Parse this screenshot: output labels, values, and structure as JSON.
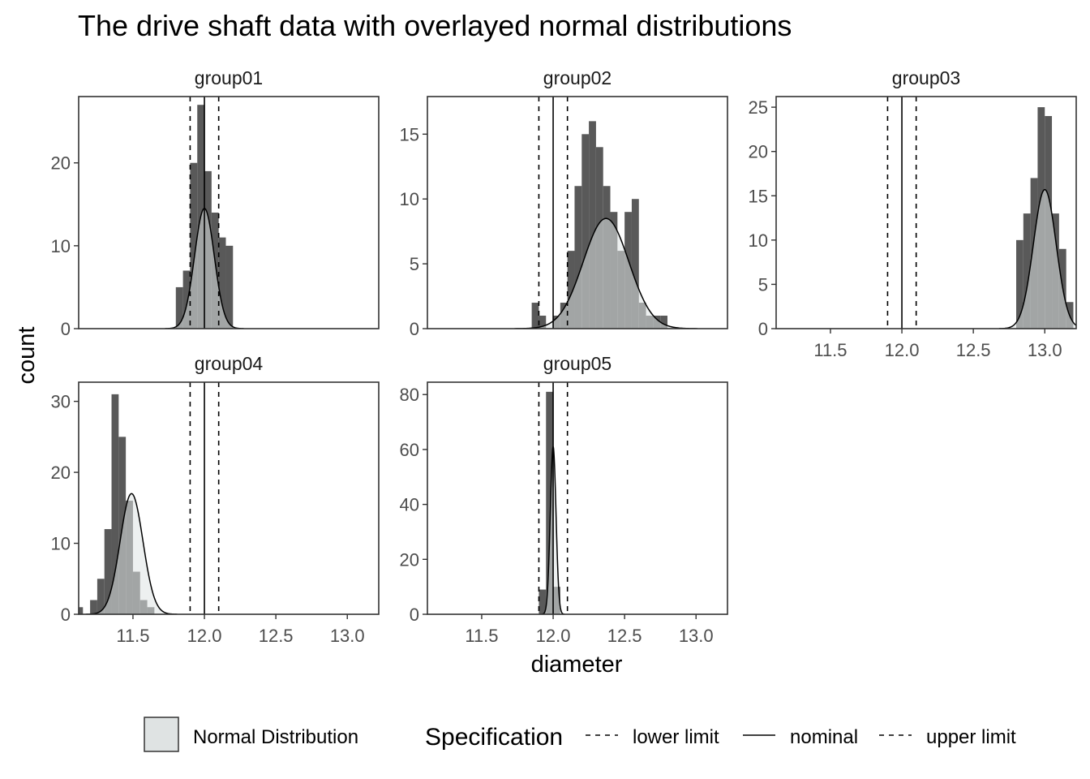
{
  "chart_data": {
    "type": "histogram",
    "title": "The drive shaft data with overlayed normal distributions",
    "xlabel": "diameter",
    "ylabel": "count",
    "xlim": [
      11.12,
      13.22
    ],
    "x_ticks": [
      11.5,
      12.0,
      12.5,
      13.0
    ],
    "x_tick_labels": [
      "11.5",
      "12.0",
      "12.5",
      "13.0"
    ],
    "bin_width": 0.05,
    "colors": {
      "bars": "#595959",
      "normal_fill": "#dfe3e3",
      "frame": "#333333",
      "curve": "#000000"
    },
    "specification": {
      "lower_limit": 11.9,
      "nominal": 12.0,
      "upper_limit": 12.1
    },
    "panels": [
      {
        "label": "group01",
        "ylim": [
          0,
          28
        ],
        "y_ticks": [
          0,
          10,
          20
        ],
        "bins": [
          {
            "x": 11.8,
            "count": 5
          },
          {
            "x": 11.85,
            "count": 7
          },
          {
            "x": 11.9,
            "count": 20
          },
          {
            "x": 11.95,
            "count": 27
          },
          {
            "x": 12.0,
            "count": 19
          },
          {
            "x": 12.05,
            "count": 14
          },
          {
            "x": 12.1,
            "count": 11
          },
          {
            "x": 12.15,
            "count": 10
          }
        ],
        "normal": {
          "mean": 12.0,
          "sd": 0.069,
          "peak": 14.5
        }
      },
      {
        "label": "group02",
        "ylim": [
          0,
          17.9
        ],
        "y_ticks": [
          0,
          5,
          10,
          15
        ],
        "bins": [
          {
            "x": 11.85,
            "count": 2
          },
          {
            "x": 11.9,
            "count": 1
          },
          {
            "x": 12.0,
            "count": 1
          },
          {
            "x": 12.05,
            "count": 2
          },
          {
            "x": 12.1,
            "count": 6
          },
          {
            "x": 12.15,
            "count": 11
          },
          {
            "x": 12.2,
            "count": 15
          },
          {
            "x": 12.25,
            "count": 16
          },
          {
            "x": 12.3,
            "count": 14
          },
          {
            "x": 12.35,
            "count": 11
          },
          {
            "x": 12.4,
            "count": 9
          },
          {
            "x": 12.45,
            "count": 6
          },
          {
            "x": 12.5,
            "count": 9
          },
          {
            "x": 12.55,
            "count": 10
          },
          {
            "x": 12.6,
            "count": 2
          },
          {
            "x": 12.65,
            "count": 1
          },
          {
            "x": 12.7,
            "count": 1
          },
          {
            "x": 12.75,
            "count": 1
          }
        ],
        "normal": {
          "mean": 12.37,
          "sd": 0.16,
          "peak": 8.5
        }
      },
      {
        "label": "group03",
        "ylim": [
          0,
          26.2
        ],
        "y_ticks": [
          0,
          5,
          10,
          15,
          20,
          25
        ],
        "bins": [
          {
            "x": 12.8,
            "count": 10
          },
          {
            "x": 12.85,
            "count": 13
          },
          {
            "x": 12.9,
            "count": 17
          },
          {
            "x": 12.95,
            "count": 25
          },
          {
            "x": 13.0,
            "count": 24
          },
          {
            "x": 13.05,
            "count": 13
          },
          {
            "x": 13.1,
            "count": 9
          },
          {
            "x": 13.15,
            "count": 3
          }
        ],
        "normal": {
          "mean": 13.0,
          "sd": 0.08,
          "peak": 15.7
        }
      },
      {
        "label": "group04",
        "ylim": [
          0,
          32.7
        ],
        "y_ticks": [
          0,
          10,
          20,
          30
        ],
        "bins": [
          {
            "x": 11.1,
            "count": 1
          },
          {
            "x": 11.2,
            "count": 2
          },
          {
            "x": 11.25,
            "count": 5
          },
          {
            "x": 11.3,
            "count": 12
          },
          {
            "x": 11.35,
            "count": 31
          },
          {
            "x": 11.4,
            "count": 25
          },
          {
            "x": 11.45,
            "count": 16
          },
          {
            "x": 11.5,
            "count": 6
          },
          {
            "x": 11.55,
            "count": 2
          },
          {
            "x": 11.6,
            "count": 1
          }
        ],
        "normal": {
          "mean": 11.49,
          "sd": 0.08,
          "peak": 17
        }
      },
      {
        "label": "group05",
        "ylim": [
          0,
          84.5
        ],
        "y_ticks": [
          0,
          20,
          40,
          60,
          80
        ],
        "bins": [
          {
            "x": 11.9,
            "count": 9
          },
          {
            "x": 11.95,
            "count": 81
          },
          {
            "x": 12.0,
            "count": 10
          }
        ],
        "normal": {
          "mean": 12.0,
          "sd": 0.02,
          "peak": 61
        }
      }
    ],
    "legend": {
      "fill_label": "Normal Distribution",
      "spec_title": "Specification",
      "items": [
        {
          "label": "lower limit",
          "style": "dashed"
        },
        {
          "label": "nominal",
          "style": "solid"
        },
        {
          "label": "upper limit",
          "style": "dashed"
        }
      ]
    }
  }
}
